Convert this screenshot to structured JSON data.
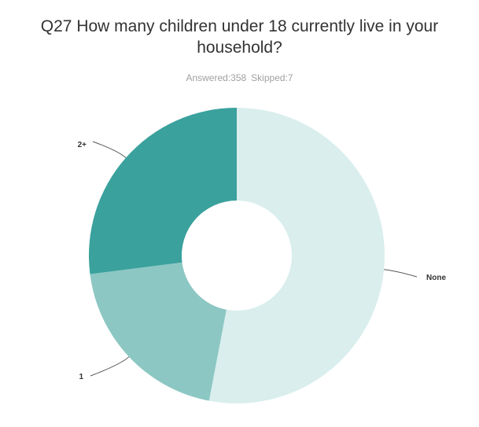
{
  "title": "Q27 How many children under 18 currently live in your household?",
  "answered": "Answered:358",
  "skipped": "Skipped:7",
  "colors": {
    "None": "#d9eeed",
    "1": "#8cc7c3",
    "2+": "#3aa19d"
  },
  "chart_data": {
    "type": "pie",
    "donut": true,
    "title": "Q27 How many children under 18 currently live in your household?",
    "categories": [
      "None",
      "1",
      "2+"
    ],
    "values": [
      53,
      20,
      27
    ],
    "value_unit": "percent (estimated from slice angles)",
    "legend": "none (labels on slices)"
  }
}
